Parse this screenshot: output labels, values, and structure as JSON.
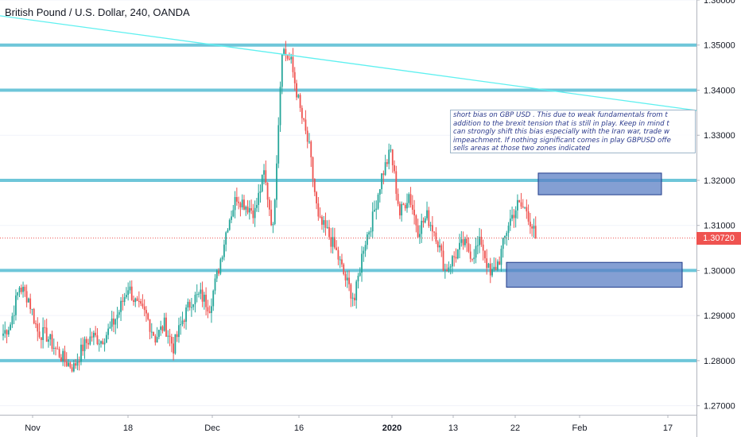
{
  "chart_title": "British Pound / U.S. Dollar, 240, OANDA",
  "colors": {
    "up": "#26a69a",
    "down": "#ef5350",
    "level_line": "#6ec6d9",
    "trend_line": "#5ff0f0",
    "zone_fill": "#5b7fc4",
    "zone_border": "#1f3a8a",
    "note_text": "#2b3a8c",
    "last_price": "#ef5350"
  },
  "chart_data": {
    "type": "candlestick",
    "y_axis": {
      "side": "right",
      "range": [
        1.268,
        1.36
      ],
      "ticks": [
        "1.36000",
        "1.35000",
        "1.34000",
        "1.33000",
        "1.32000",
        "1.31000",
        "1.30000",
        "1.29000",
        "1.28000",
        "1.27000"
      ]
    },
    "x_axis": {
      "ticks": [
        {
          "label": "Nov",
          "bold": false
        },
        {
          "label": "18",
          "bold": false
        },
        {
          "label": "Dec",
          "bold": false
        },
        {
          "label": "16",
          "bold": false
        },
        {
          "label": "2020",
          "bold": true
        },
        {
          "label": "13",
          "bold": false
        },
        {
          "label": "22",
          "bold": false
        },
        {
          "label": "Feb",
          "bold": false
        },
        {
          "label": "17",
          "bold": false
        }
      ]
    },
    "horizontal_levels": [
      1.35,
      1.34,
      1.32,
      1.3,
      1.28
    ],
    "trend_line": {
      "start_price": 1.3565,
      "end_price": 1.3355
    },
    "zones": [
      {
        "top": 1.3216,
        "bottom": 1.3168
      },
      {
        "top": 1.3018,
        "bottom": 1.2963
      }
    ],
    "last_price": {
      "value": 1.3072,
      "label": "1.30720"
    },
    "price_path": [
      1.2855,
      1.2882,
      1.2965,
      1.2938,
      1.2865,
      1.2855,
      1.2825,
      1.28,
      1.2785,
      1.283,
      1.2855,
      1.2845,
      1.287,
      1.291,
      1.2965,
      1.292,
      1.29,
      1.285,
      1.288,
      1.283,
      1.289,
      1.2935,
      1.2945,
      1.292,
      1.3005,
      1.3105,
      1.3165,
      1.3145,
      1.313,
      1.3215,
      1.309,
      1.3495,
      1.346,
      1.3355,
      1.327,
      1.311,
      1.3085,
      1.304,
      1.298,
      1.2935,
      1.3055,
      1.3115,
      1.321,
      1.3265,
      1.3125,
      1.317,
      1.309,
      1.312,
      1.308,
      1.3,
      1.303,
      1.306,
      1.3035,
      1.3065,
      1.2985,
      1.3025,
      1.3105,
      1.3145,
      1.3135,
      1.3072
    ],
    "annotation": [
      "short bias on GBP USD . This due to weak fundamentals from t",
      "addition to the brexit tension that is still in play. Keep in mind t",
      "can strongly shift this bias especially with the Iran war, trade w",
      "impeachment. If nothing significant comes in play GBPUSD offe",
      "sells areas at those two zones indicated"
    ]
  }
}
